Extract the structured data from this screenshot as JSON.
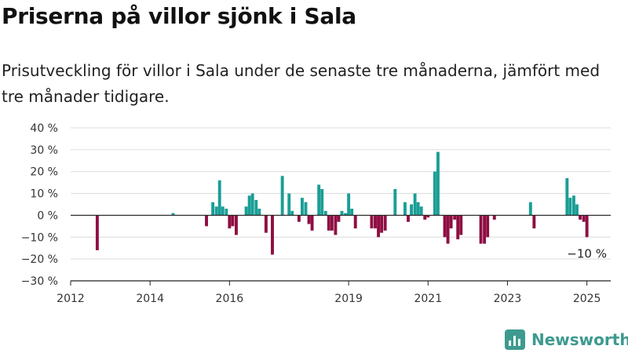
{
  "title": "Priserna på villor sjönk i Sala",
  "subtitle": "Prisutveckling för villor i Sala under de senaste tre månaderna, jämfört med tre månader tidigare.",
  "brand": {
    "name": "Newsworthy",
    "icon": "newsworthy-logo-icon"
  },
  "colors": {
    "positive": "#1a9e96",
    "negative": "#8e0e42",
    "grid": "#dcdcdc",
    "brand": "#3d9a8f"
  },
  "chart_data": {
    "type": "bar",
    "title": "Priserna på villor sjönk i Sala",
    "xlabel": "",
    "ylabel": "",
    "ylim": [
      -30,
      40
    ],
    "xlim": [
      2012.0,
      2025.6
    ],
    "y_ticks": [
      {
        "value": 40,
        "label": "40 %"
      },
      {
        "value": 30,
        "label": "30 %"
      },
      {
        "value": 20,
        "label": "20 %"
      },
      {
        "value": 10,
        "label": "10 %"
      },
      {
        "value": 0,
        "label": "0 %"
      },
      {
        "value": -10,
        "label": "−10 %"
      },
      {
        "value": -20,
        "label": "−20 %"
      },
      {
        "value": -30,
        "label": "−30 %"
      }
    ],
    "x_ticks": [
      {
        "value": 2012,
        "label": "2012"
      },
      {
        "value": 2014,
        "label": "2014"
      },
      {
        "value": 2016,
        "label": "2016"
      },
      {
        "value": 2019,
        "label": "2019"
      },
      {
        "value": 2021,
        "label": "2021"
      },
      {
        "value": 2023,
        "label": "2023"
      },
      {
        "value": 2025,
        "label": "2025"
      }
    ],
    "grid": true,
    "annotation": {
      "label": "−10 %",
      "value": -10
    },
    "series": [
      {
        "values": [
          [
            2012.67,
            -16
          ],
          [
            2014.58,
            1
          ],
          [
            2015.42,
            -5
          ],
          [
            2015.58,
            6
          ],
          [
            2015.67,
            4
          ],
          [
            2015.75,
            16
          ],
          [
            2015.83,
            4
          ],
          [
            2015.92,
            3
          ],
          [
            2016.0,
            -6
          ],
          [
            2016.08,
            -5
          ],
          [
            2016.17,
            -9
          ],
          [
            2016.42,
            4
          ],
          [
            2016.5,
            9
          ],
          [
            2016.58,
            10
          ],
          [
            2016.67,
            7
          ],
          [
            2016.75,
            3
          ],
          [
            2016.92,
            -8
          ],
          [
            2017.08,
            -18
          ],
          [
            2017.33,
            18
          ],
          [
            2017.5,
            10
          ],
          [
            2017.58,
            2
          ],
          [
            2017.75,
            -3
          ],
          [
            2017.83,
            8
          ],
          [
            2017.92,
            6
          ],
          [
            2018.0,
            -4
          ],
          [
            2018.08,
            -7
          ],
          [
            2018.25,
            14
          ],
          [
            2018.33,
            12
          ],
          [
            2018.42,
            2
          ],
          [
            2018.5,
            -7
          ],
          [
            2018.58,
            -7
          ],
          [
            2018.67,
            -9
          ],
          [
            2018.75,
            -3
          ],
          [
            2018.83,
            2
          ],
          [
            2018.92,
            1
          ],
          [
            2019.0,
            10
          ],
          [
            2019.08,
            3
          ],
          [
            2019.17,
            -6
          ],
          [
            2019.58,
            -6
          ],
          [
            2019.67,
            -6
          ],
          [
            2019.75,
            -10
          ],
          [
            2019.83,
            -8
          ],
          [
            2019.92,
            -7
          ],
          [
            2020.17,
            12
          ],
          [
            2020.42,
            6
          ],
          [
            2020.5,
            -3
          ],
          [
            2020.58,
            5
          ],
          [
            2020.67,
            10
          ],
          [
            2020.75,
            6
          ],
          [
            2020.83,
            4
          ],
          [
            2020.92,
            -2
          ],
          [
            2021.0,
            -1
          ],
          [
            2021.17,
            20
          ],
          [
            2021.25,
            29
          ],
          [
            2021.42,
            -10
          ],
          [
            2021.5,
            -13
          ],
          [
            2021.58,
            -6
          ],
          [
            2021.67,
            -2
          ],
          [
            2021.75,
            -11
          ],
          [
            2021.83,
            -9
          ],
          [
            2022.33,
            -13
          ],
          [
            2022.42,
            -13
          ],
          [
            2022.5,
            -10
          ],
          [
            2022.67,
            -2
          ],
          [
            2023.58,
            6
          ],
          [
            2023.67,
            -6
          ],
          [
            2024.5,
            17
          ],
          [
            2024.58,
            8
          ],
          [
            2024.67,
            9
          ],
          [
            2024.75,
            5
          ],
          [
            2024.83,
            -2
          ],
          [
            2024.92,
            -3
          ],
          [
            2025.0,
            -10
          ]
        ]
      }
    ]
  }
}
